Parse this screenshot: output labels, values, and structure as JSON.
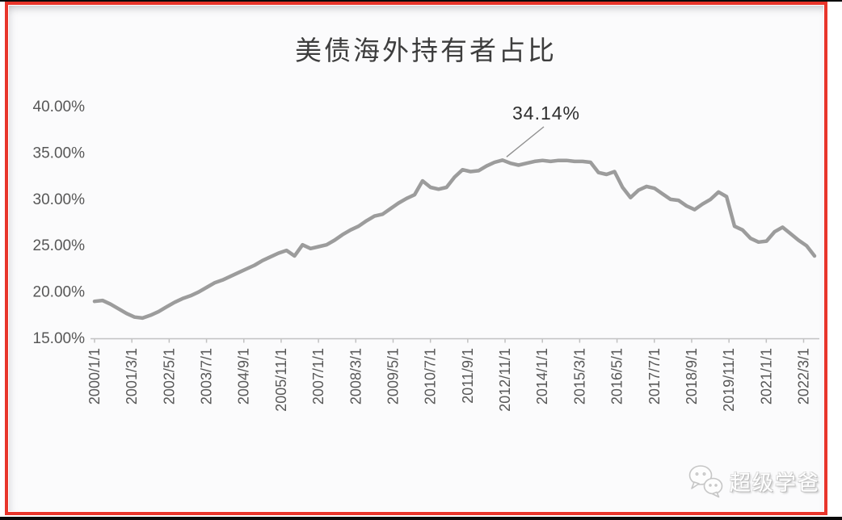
{
  "frame": {
    "border_color": "#e8352b",
    "background_color": "#fbfbfc"
  },
  "chart_data": {
    "type": "line",
    "title": "美债海外持有者占比",
    "series": [
      {
        "name": "美债海外持有者占比",
        "frequency": "quarterly",
        "x_start": "2000/1",
        "x_end": "2022/7",
        "values": [
          18.9,
          19.0,
          18.6,
          18.1,
          17.6,
          17.2,
          17.1,
          17.4,
          17.8,
          18.3,
          18.8,
          19.2,
          19.5,
          19.9,
          20.4,
          20.9,
          21.2,
          21.6,
          22.0,
          22.4,
          22.8,
          23.3,
          23.7,
          24.1,
          24.4,
          23.8,
          25.0,
          24.6,
          24.8,
          25.0,
          25.5,
          26.1,
          26.6,
          27.0,
          27.6,
          28.1,
          28.3,
          28.9,
          29.5,
          30.0,
          30.4,
          31.9,
          31.2,
          31.0,
          31.2,
          32.3,
          33.1,
          32.9,
          33.0,
          33.5,
          33.9,
          34.14,
          33.8,
          33.6,
          33.8,
          34.0,
          34.1,
          34.0,
          34.1,
          34.1,
          34.0,
          34.0,
          33.9,
          32.8,
          32.6,
          32.9,
          31.2,
          30.1,
          30.9,
          31.3,
          31.1,
          30.5,
          29.9,
          29.8,
          29.2,
          28.8,
          29.4,
          29.9,
          30.7,
          30.2,
          27.0,
          26.6,
          25.7,
          25.3,
          25.4,
          26.4,
          26.9,
          26.2,
          25.5,
          24.9,
          23.8
        ]
      }
    ],
    "x_tick_labels": [
      "2000/1/1",
      "2001/3/1",
      "2002/5/1",
      "2003/7/1",
      "2004/9/1",
      "2005/11/1",
      "2007/1/1",
      "2008/3/1",
      "2009/5/1",
      "2010/7/1",
      "2011/9/1",
      "2012/11/1",
      "2014/1/1",
      "2015/3/1",
      "2016/5/1",
      "2017/7/1",
      "2018/9/1",
      "2019/11/1",
      "2021/1/1",
      "2022/3/1"
    ],
    "y_tick_labels": [
      "40.00%",
      "35.00%",
      "30.00%",
      "25.00%",
      "20.00%",
      "15.00%"
    ],
    "y_tick_values": [
      40,
      35,
      30,
      25,
      20,
      15
    ],
    "ylim": [
      15,
      40
    ],
    "grid": false,
    "legend": "none",
    "line_color": "#9c9c9c",
    "axis_color": "#c2c2c2",
    "label_color": "#575757",
    "annotation": {
      "text": "34.14%",
      "target_index": 51,
      "target_value": 34.14
    }
  },
  "watermark": {
    "text": "超级学爸",
    "icon": "wechat-bubbles-icon"
  }
}
